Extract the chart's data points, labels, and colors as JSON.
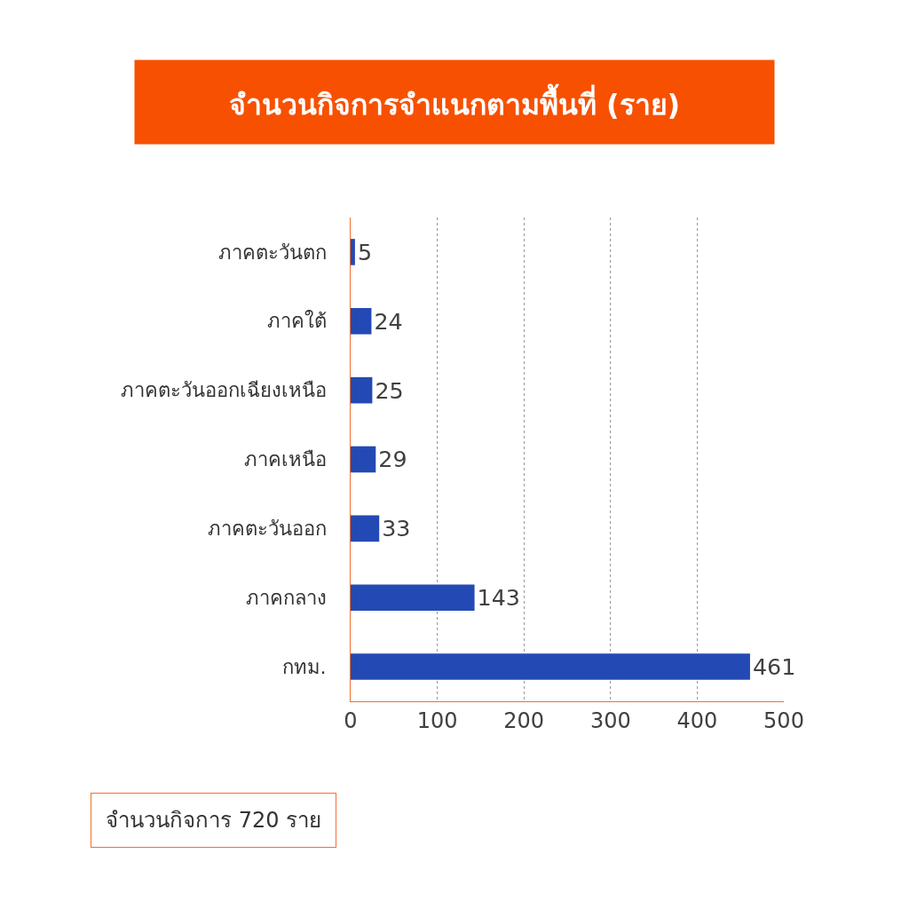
{
  "chart_data": {
    "type": "bar",
    "orientation": "horizontal",
    "title": "จำนวนกิจการจำแนกตามพื้นที่ (ราย)",
    "categories": [
      "ภาคตะวันตก",
      "ภาคใต้",
      "ภาคตะวันออกเฉียงเหนือ",
      "ภาคเหนือ",
      "ภาคตะวันออก",
      "ภาคกลาง",
      "กทม."
    ],
    "values": [
      5,
      24,
      25,
      29,
      33,
      143,
      461
    ],
    "color": "#234ab4",
    "xlim": [
      0,
      500
    ],
    "xticks": [
      0,
      100,
      200,
      300,
      400,
      500
    ],
    "grid": "x",
    "data_labels": true,
    "legend": false,
    "annotations": [
      "จำนวนกิจการ 720 ราย"
    ]
  }
}
